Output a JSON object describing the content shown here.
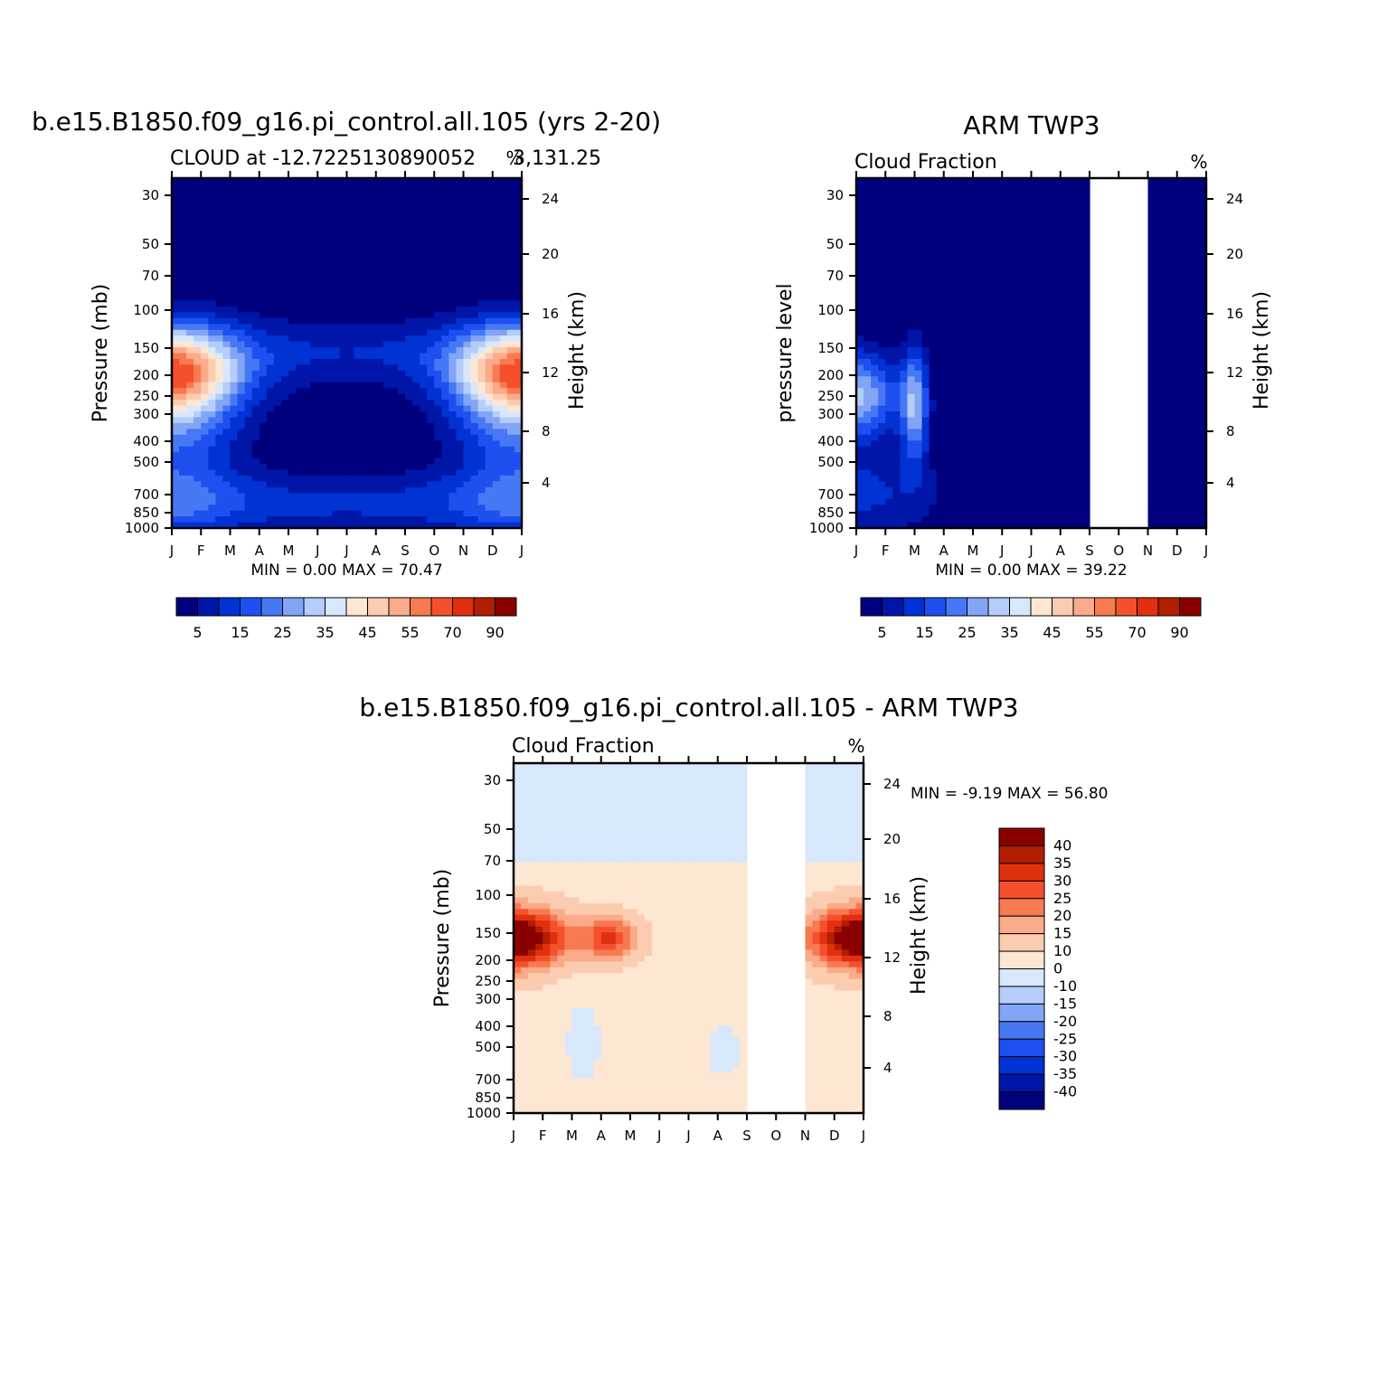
{
  "panels": [
    {
      "title": "b.e15.B1850.f09_g16.pi_control.all.105 (yrs 2-20)",
      "subtitle_left": "CLOUD at -12.7225130890052",
      "subtitle_overlap": "3,131.25",
      "units": "%",
      "ylabel_left": "Pressure (mb)",
      "ylabel_right": "Height (km)",
      "stats": "MIN = 0.00 MAX = 70.47"
    },
    {
      "title": "ARM TWP3",
      "subtitle_left": "Cloud Fraction",
      "units": "%",
      "ylabel_left": "pressure level",
      "ylabel_right": "Height (km)",
      "stats": "MIN = 0.00 MAX = 39.22"
    },
    {
      "title": "b.e15.B1850.f09_g16.pi_control.all.105 - ARM TWP3",
      "subtitle_left": "Cloud Fraction",
      "units": "%",
      "ylabel_left": "Pressure (mb)",
      "ylabel_right": "Height (km)",
      "stats": "MIN = -9.19 MAX = 56.80"
    }
  ],
  "chart_data": [
    {
      "type": "heatmap",
      "title": "b.e15.B1850.f09_g16.pi_control.all.105 (yrs 2-20)",
      "subtitle": "CLOUD at -12.72251308900523,131.25",
      "units": "%",
      "x_ticks": [
        "J",
        "F",
        "M",
        "A",
        "M",
        "J",
        "J",
        "A",
        "S",
        "O",
        "N",
        "D",
        "J"
      ],
      "y_ticks_pressure_mb": [
        30,
        50,
        70,
        100,
        150,
        200,
        250,
        300,
        400,
        500,
        700,
        850,
        1000
      ],
      "y2_ticks_height_km": [
        24,
        20,
        16,
        12,
        8,
        4
      ],
      "xlabel": "",
      "ylabel": "Pressure (mb)",
      "y2label": "Height (km)",
      "min": 0.0,
      "max": 70.47,
      "colorbar_labels": [
        "5",
        "15",
        "25",
        "35",
        "45",
        "55",
        "70",
        "90"
      ]
    },
    {
      "type": "heatmap",
      "title": "ARM TWP3",
      "subtitle": "Cloud Fraction",
      "units": "%",
      "x_ticks": [
        "J",
        "F",
        "M",
        "A",
        "M",
        "J",
        "J",
        "A",
        "S",
        "O",
        "N",
        "D",
        "J"
      ],
      "y_ticks_pressure_mb": [
        30,
        50,
        70,
        100,
        150,
        200,
        250,
        300,
        400,
        500,
        700,
        850,
        1000
      ],
      "y2_ticks_height_km": [
        24,
        20,
        16,
        12,
        8,
        4
      ],
      "ylabel": "pressure level",
      "y2label": "Height (km)",
      "min": 0.0,
      "max": 39.22,
      "missing_months": [
        "S-O",
        "O-N"
      ],
      "colorbar_labels": [
        "5",
        "15",
        "25",
        "35",
        "45",
        "55",
        "70",
        "90"
      ]
    },
    {
      "type": "heatmap",
      "title": "b.e15.B1850.f09_g16.pi_control.all.105 - ARM TWP3",
      "subtitle": "Cloud Fraction",
      "units": "%",
      "x_ticks": [
        "J",
        "F",
        "M",
        "A",
        "M",
        "J",
        "J",
        "A",
        "S",
        "O",
        "N",
        "D",
        "J"
      ],
      "y_ticks_pressure_mb": [
        30,
        50,
        70,
        100,
        150,
        200,
        250,
        300,
        400,
        500,
        700,
        850,
        1000
      ],
      "y2_ticks_height_km": [
        24,
        20,
        16,
        12,
        8,
        4
      ],
      "ylabel": "Pressure (mb)",
      "y2label": "Height (km)",
      "min": -9.19,
      "max": 56.8,
      "missing_months": [
        "S-O",
        "O-N"
      ],
      "colorbar_labels": [
        "40",
        "35",
        "30",
        "25",
        "20",
        "15",
        "10",
        "0",
        "-10",
        "-15",
        "-20",
        "-25",
        "-30",
        "-35",
        "-40"
      ]
    }
  ],
  "colors": {
    "seq": [
      "#00007f",
      "#0016a8",
      "#0032d4",
      "#1e50f0",
      "#4678f5",
      "#82a5f5",
      "#b4cdfa",
      "#d7e8fc",
      "#fee7d2",
      "#fcccb0",
      "#fbaa8a",
      "#f87a50",
      "#f5502d",
      "#e0300f",
      "#b41e00",
      "#8a0000"
    ],
    "div": [
      "#8a0000",
      "#b41e00",
      "#e0300f",
      "#f5502d",
      "#f87a50",
      "#fbaa8a",
      "#fcccb0",
      "#fee7d2",
      "#d7e8fc",
      "#b4cdfa",
      "#82a5f5",
      "#4678f5",
      "#1e50f0",
      "#0032d4",
      "#0016a8",
      "#00007f"
    ]
  }
}
